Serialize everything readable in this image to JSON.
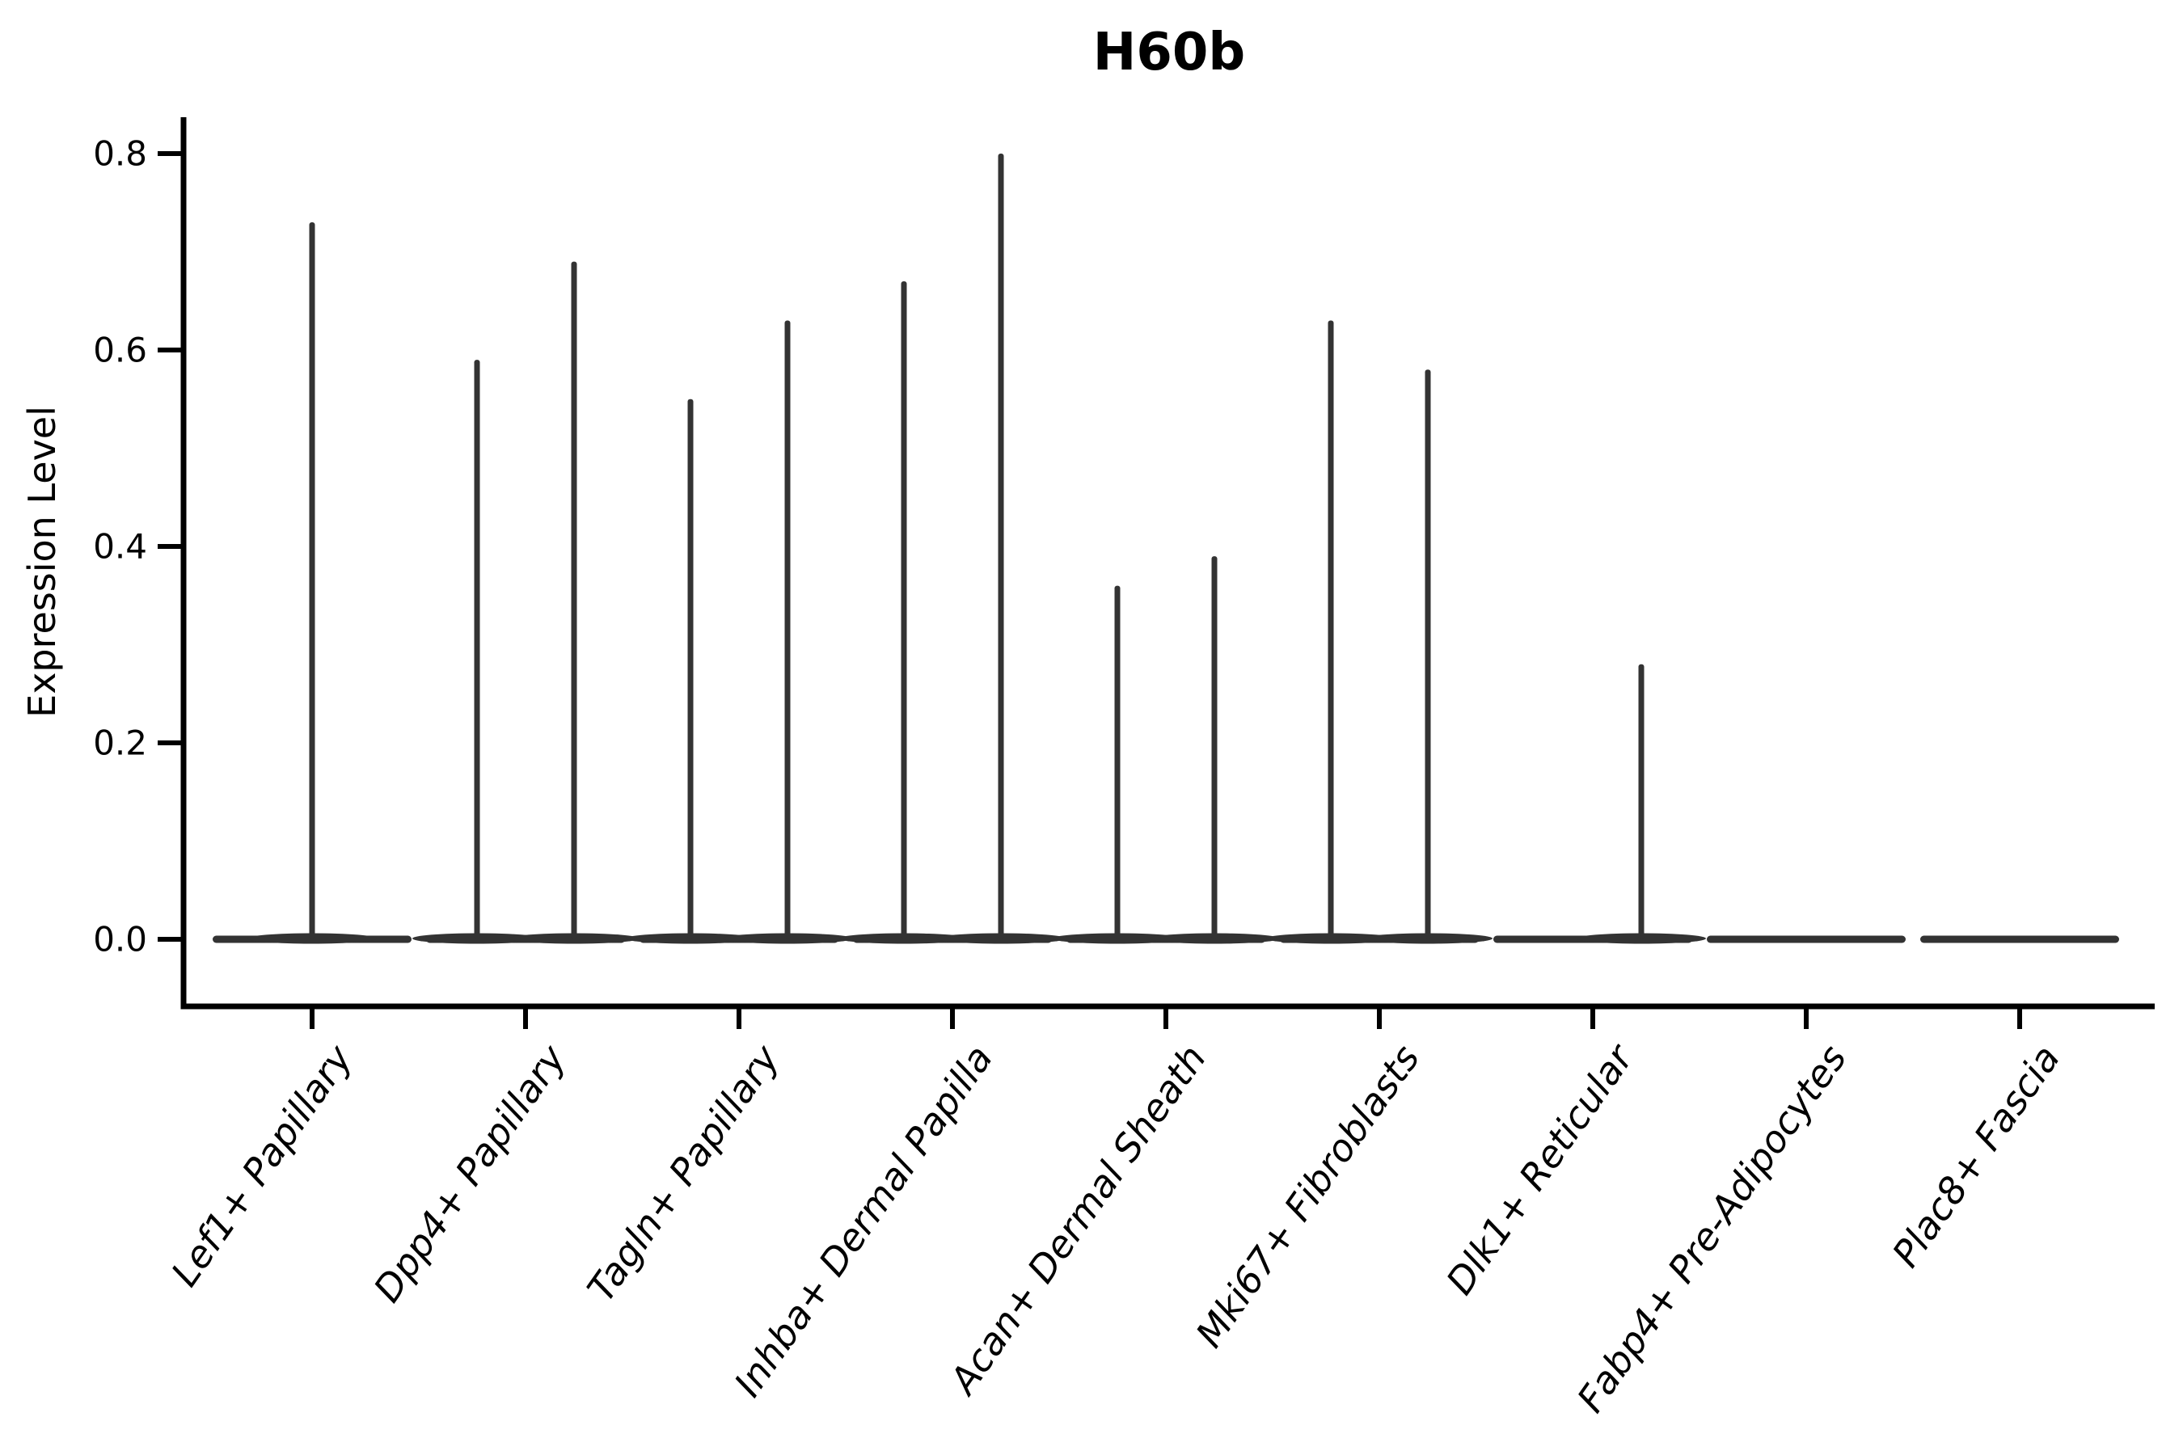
{
  "title": "H60b",
  "ylabel": "Expression Level",
  "colors": {
    "violin": "#333333",
    "axis": "#000000",
    "background": "#ffffff"
  },
  "chart_data": {
    "type": "violin",
    "title": "H60b",
    "xlabel": "",
    "ylabel": "Expression Level",
    "ylim": [
      0.0,
      0.85
    ],
    "yticks": [
      "0.0",
      "0.2",
      "0.4",
      "0.6",
      "0.8"
    ],
    "ytick_values": [
      0.0,
      0.2,
      0.4,
      0.6,
      0.8
    ],
    "grid": false,
    "legend": "none",
    "categories": [
      "Lef1+ Papillary",
      "Dpp4+ Papillary",
      "Tagln+ Papillary",
      "Inhba+ Dermal Papilla",
      "Acan+ Dermal Sheath",
      "Mki67+ Fibroblasts",
      "Dlk1+ Reticular",
      "Fabp4+ Pre-Adipocytes",
      "Plac8+ Fascia"
    ],
    "description": "Very flat violins concentrated at expression 0 with thin tail spikes reaching the max expression value; some categories show two sub-violin tails (left/right), some one central tail, some no tail.",
    "violins": [
      {
        "category": "Lef1+ Papillary",
        "body_at": 0.0,
        "spikes": [
          {
            "offset": "center",
            "value": 0.73
          }
        ]
      },
      {
        "category": "Dpp4+ Papillary",
        "body_at": 0.0,
        "spikes": [
          {
            "offset": "left",
            "value": 0.59
          },
          {
            "offset": "right",
            "value": 0.69
          }
        ]
      },
      {
        "category": "Tagln+ Papillary",
        "body_at": 0.0,
        "spikes": [
          {
            "offset": "left",
            "value": 0.55
          },
          {
            "offset": "right",
            "value": 0.63
          }
        ]
      },
      {
        "category": "Inhba+ Dermal Papilla",
        "body_at": 0.0,
        "spikes": [
          {
            "offset": "left",
            "value": 0.67
          },
          {
            "offset": "right",
            "value": 0.8
          }
        ]
      },
      {
        "category": "Acan+ Dermal Sheath",
        "body_at": 0.0,
        "spikes": [
          {
            "offset": "left",
            "value": 0.36
          },
          {
            "offset": "right",
            "value": 0.39
          }
        ]
      },
      {
        "category": "Mki67+ Fibroblasts",
        "body_at": 0.0,
        "spikes": [
          {
            "offset": "left",
            "value": 0.63
          },
          {
            "offset": "right",
            "value": 0.58
          }
        ]
      },
      {
        "category": "Dlk1+ Reticular",
        "body_at": 0.0,
        "spikes": [
          {
            "offset": "right",
            "value": 0.28
          }
        ]
      },
      {
        "category": "Fabp4+ Pre-Adipocytes",
        "body_at": 0.0,
        "spikes": []
      },
      {
        "category": "Plac8+ Fascia",
        "body_at": 0.0,
        "spikes": []
      }
    ]
  }
}
